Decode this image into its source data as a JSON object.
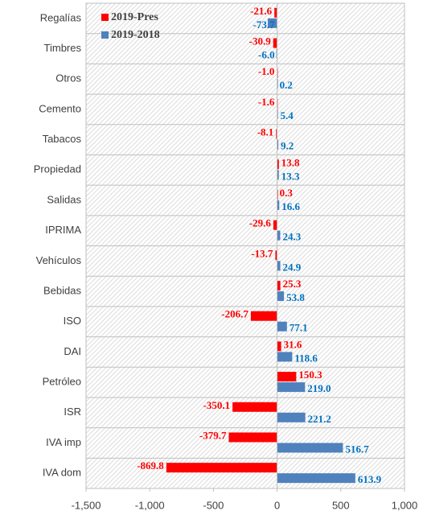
{
  "chart_data": {
    "type": "hbar",
    "categories": [
      "Regalías",
      "Timbres",
      "Otros",
      "Cemento",
      "Tabacos",
      "Propiedad",
      "Salidas",
      "IPRIMA",
      "Vehículos",
      "Bebidas",
      "ISO",
      "DAI",
      "Petróleo",
      "ISR",
      "IVA imp",
      "IVA dom"
    ],
    "series": [
      {
        "name": "2019-Pres",
        "color": "#ff0000",
        "values": [
          -21.6,
          -30.9,
          -1.0,
          -1.6,
          -8.1,
          13.8,
          0.3,
          -29.6,
          -13.7,
          25.3,
          -206.7,
          31.6,
          150.3,
          -350.1,
          -379.7,
          -869.8
        ],
        "value_labels": [
          "-21.6",
          "-30.9",
          "-1.0",
          "-1.6",
          "-8.1",
          "13.8",
          "0.3",
          "-29.6",
          "-13.7",
          "25.3",
          "-206.7",
          "31.6",
          "150.3",
          "-350.1",
          "-379.7",
          "-869.8"
        ]
      },
      {
        "name": "2019-2018",
        "color": "#4f81bd",
        "values": [
          -73.7,
          -6.0,
          0.2,
          5.4,
          9.2,
          13.3,
          16.6,
          24.3,
          24.9,
          53.8,
          77.1,
          118.6,
          219.0,
          221.2,
          516.7,
          613.9
        ],
        "value_labels": [
          "-73.7",
          "-6.0",
          "0.2",
          "5.4",
          "9.2",
          "13.3",
          "16.6",
          "24.3",
          "24.9",
          "53.8",
          "77.1",
          "118.6",
          "219.0",
          "221.2",
          "516.7",
          "613.9"
        ]
      }
    ],
    "xlim": [
      -1500,
      1000
    ],
    "xticks": [
      {
        "value": -1500,
        "label": "-1,500"
      },
      {
        "value": -1000,
        "label": "-1,000"
      },
      -500,
      0,
      500,
      {
        "value": 1000,
        "label": "1,000"
      }
    ],
    "legend": "top-left"
  }
}
